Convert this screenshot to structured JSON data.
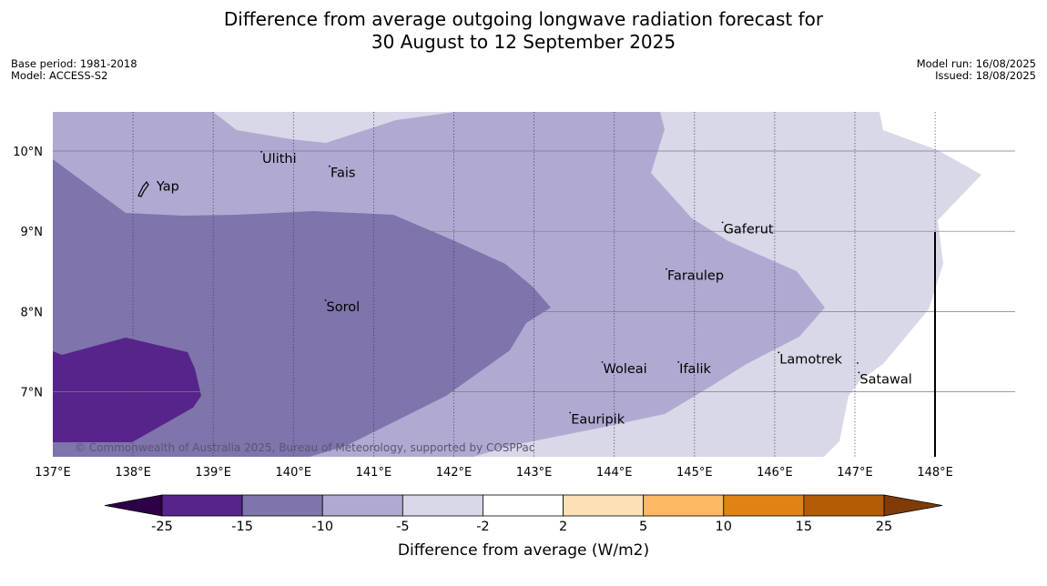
{
  "title": {
    "line1": "Difference from average outgoing longwave radiation forecast for",
    "line2": "30 August to 12 September 2025"
  },
  "meta_left": {
    "base_period": "Base period: 1981-2018",
    "model": "Model: ACCESS-S2"
  },
  "meta_right": {
    "model_run": "Model run: 16/08/2025",
    "issued": "Issued: 18/08/2025"
  },
  "copyright": "© Commonwealth of Australia 2025, Bureau of Meteorology, supported by COSPPac",
  "map": {
    "lon_range": [
      137,
      149
    ],
    "lat_range": [
      6.2,
      10.5
    ],
    "lon_ticks": [
      137,
      138,
      139,
      140,
      141,
      142,
      143,
      144,
      145,
      146,
      147,
      148
    ],
    "lon_labels": [
      "137°E",
      "138°E",
      "139°E",
      "140°E",
      "141°E",
      "142°E",
      "143°E",
      "144°E",
      "145°E",
      "146°E",
      "147°E",
      "148°E"
    ],
    "lat_ticks": [
      10,
      9,
      8,
      7
    ],
    "lat_labels": [
      "10°N",
      "9°N",
      "8°N",
      "7°N"
    ],
    "places": [
      {
        "name": "Yap",
        "lon": 138.1,
        "lat": 9.55
      },
      {
        "name": "Ulithi",
        "lon": 139.6,
        "lon_dot": 139.7,
        "lat": 9.9
      },
      {
        "name": "Fais",
        "lon": 140.45,
        "lat": 9.72
      },
      {
        "name": "Gaferut",
        "lon": 145.35,
        "lat": 9.02
      },
      {
        "name": "Faraulep",
        "lon": 144.65,
        "lat": 8.44
      },
      {
        "name": "Sorol",
        "lon": 140.4,
        "lat": 8.05
      },
      {
        "name": "Woleai",
        "lon": 143.85,
        "lat": 7.28
      },
      {
        "name": "Ifalik",
        "lon": 144.8,
        "lat": 7.28
      },
      {
        "name": "Lamotrek",
        "lon": 146.05,
        "lat": 7.4
      },
      {
        "name": "Satawal",
        "lon": 147.05,
        "lat": 7.15
      },
      {
        "name": "Eauripik",
        "lon": 143.45,
        "lat": 6.65
      }
    ],
    "zones": [
      {
        "range": "-2 to 2",
        "color": "#ffffff"
      },
      {
        "range": "-5 to -2",
        "color": "#d8d8e8"
      },
      {
        "range": "-10 to -5",
        "color": "#b0aad2"
      },
      {
        "range": "-15 to -10",
        "color": "#7f74ac"
      },
      {
        "range": "-25 to -15",
        "color": "#56248b"
      }
    ]
  },
  "colorbar": {
    "labels": [
      "-25",
      "-15",
      "-10",
      "-5",
      "-2",
      "2",
      "5",
      "10",
      "15",
      "25"
    ],
    "colors": [
      "#56248b",
      "#7f74ac",
      "#b0aad2",
      "#d8d8e8",
      "#ffffff",
      "#fee0b6",
      "#fdb864",
      "#e08314",
      "#b45b06"
    ],
    "under_color": "#2d0047",
    "over_color": "#7f3b08",
    "title": "Difference from average (W/m2)"
  }
}
